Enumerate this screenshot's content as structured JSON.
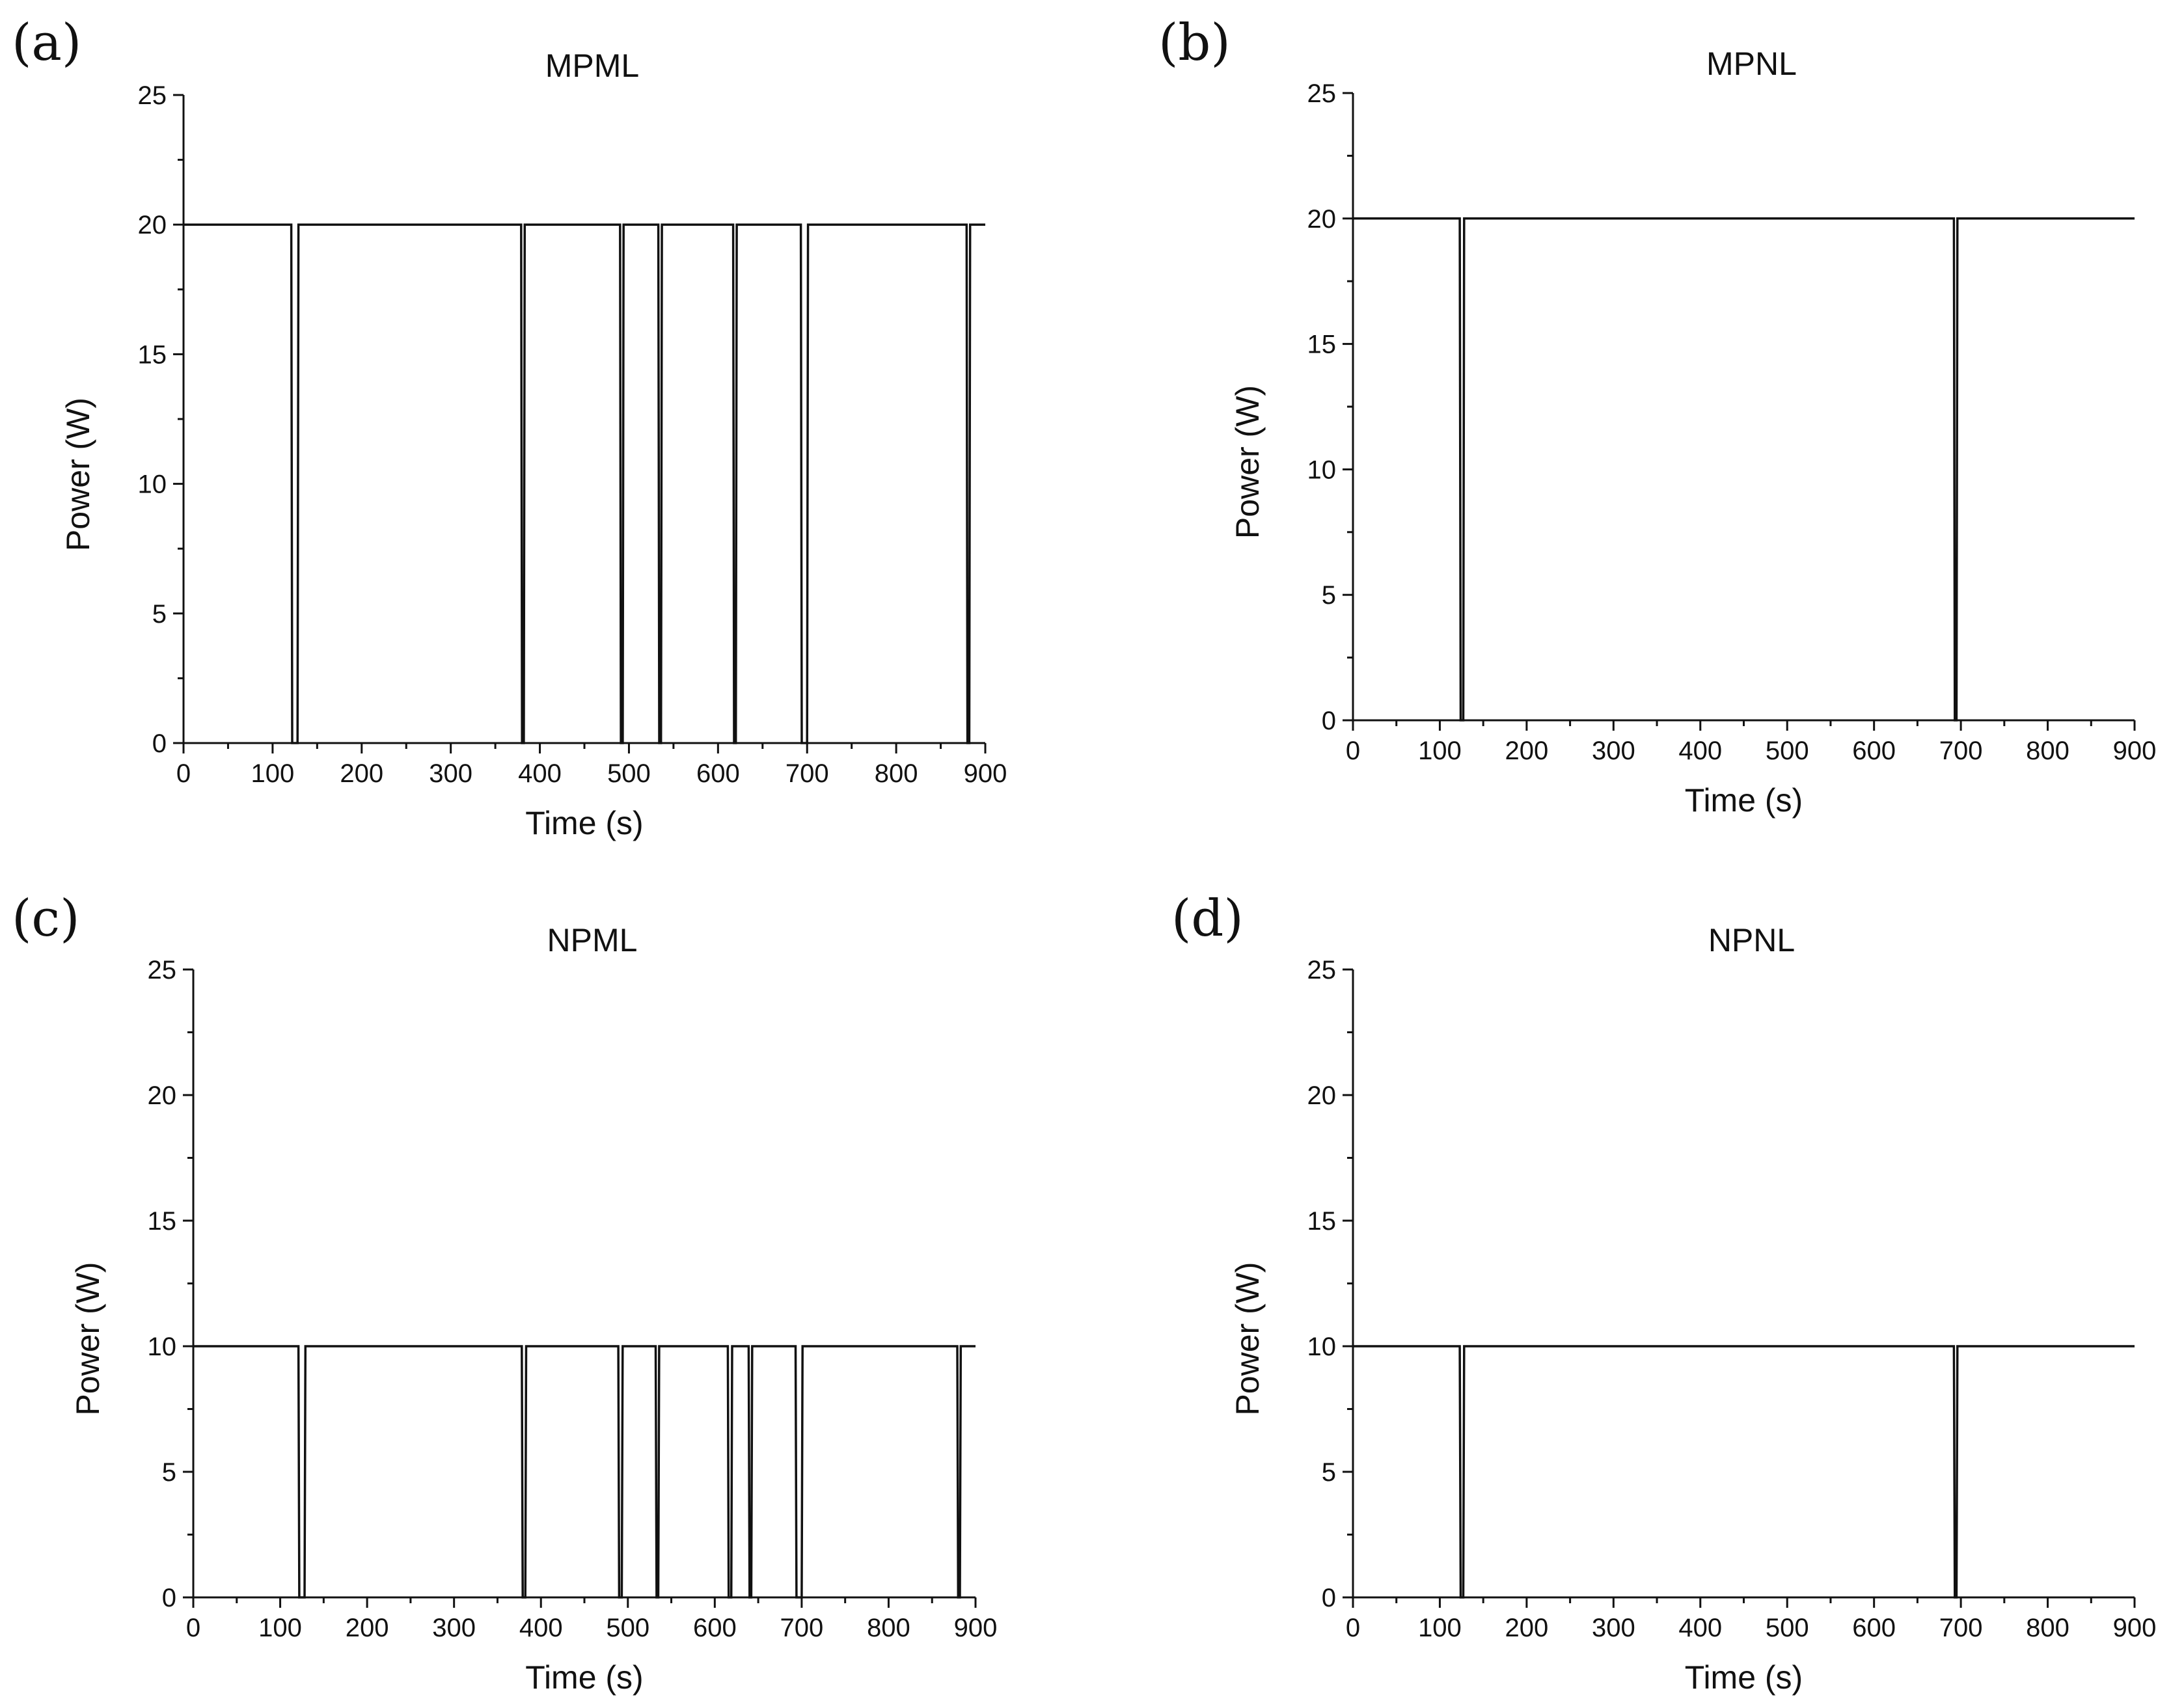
{
  "chart_data": [
    {
      "type": "line",
      "panel": "(a)",
      "title": "MPML",
      "xlabel": "Time (s)",
      "ylabel": "Power (W)",
      "xlim": [
        0,
        900
      ],
      "ylim": [
        0,
        25
      ],
      "xticks": [
        0,
        100,
        200,
        300,
        400,
        500,
        600,
        700,
        800,
        900
      ],
      "yticks": [
        0,
        5,
        10,
        15,
        20,
        25
      ],
      "grid": false,
      "series": [
        {
          "name": "Power",
          "x": [
            0,
            121,
            122,
            128,
            129,
            379,
            380,
            382,
            383,
            490,
            491,
            493,
            494,
            533,
            534,
            536,
            537,
            617,
            618,
            620,
            621,
            693,
            694,
            700,
            701,
            879,
            880,
            882,
            883,
            900
          ],
          "y": [
            20,
            20,
            0,
            0,
            20,
            20,
            0,
            0,
            20,
            20,
            0,
            0,
            20,
            20,
            0,
            0,
            20,
            20,
            0,
            0,
            20,
            20,
            0,
            0,
            20,
            20,
            0,
            0,
            20,
            20
          ]
        }
      ]
    },
    {
      "type": "line",
      "panel": "(b)",
      "title": "MPNL",
      "xlabel": "Time (s)",
      "ylabel": "Power (W)",
      "xlim": [
        0,
        900
      ],
      "ylim": [
        0,
        25
      ],
      "xticks": [
        0,
        100,
        200,
        300,
        400,
        500,
        600,
        700,
        800,
        900
      ],
      "yticks": [
        0,
        5,
        10,
        15,
        20,
        25
      ],
      "grid": false,
      "series": [
        {
          "name": "Power",
          "x": [
            0,
            123,
            124,
            127,
            128,
            692,
            693,
            695,
            696,
            900
          ],
          "y": [
            20,
            20,
            0,
            0,
            20,
            20,
            0,
            0,
            20,
            20
          ]
        }
      ]
    },
    {
      "type": "line",
      "panel": "(c)",
      "title": "NPML",
      "xlabel": "Time (s)",
      "ylabel": "Power (W)",
      "xlim": [
        0,
        900
      ],
      "ylim": [
        0,
        25
      ],
      "xticks": [
        0,
        100,
        200,
        300,
        400,
        500,
        600,
        700,
        800,
        900
      ],
      "yticks": [
        0,
        5,
        10,
        15,
        20,
        25
      ],
      "grid": false,
      "series": [
        {
          "name": "Power",
          "x": [
            0,
            121,
            122,
            128,
            129,
            378,
            379,
            382,
            383,
            489,
            490,
            493,
            494,
            532,
            533,
            535,
            536,
            615,
            616,
            619,
            620,
            639,
            640,
            642,
            643,
            693,
            694,
            700,
            701,
            879,
            880,
            882,
            883,
            900
          ],
          "y": [
            10,
            10,
            0,
            0,
            10,
            10,
            0,
            0,
            10,
            10,
            0,
            0,
            10,
            10,
            0,
            0,
            10,
            10,
            0,
            0,
            10,
            10,
            0,
            0,
            10,
            10,
            0,
            0,
            10,
            10,
            0,
            0,
            10,
            10
          ]
        }
      ]
    },
    {
      "type": "line",
      "panel": "(d)",
      "title": "NPNL",
      "xlabel": "Time (s)",
      "ylabel": "Power (W)",
      "xlim": [
        0,
        900
      ],
      "ylim": [
        0,
        25
      ],
      "xticks": [
        0,
        100,
        200,
        300,
        400,
        500,
        600,
        700,
        800,
        900
      ],
      "yticks": [
        0,
        5,
        10,
        15,
        20,
        25
      ],
      "grid": false,
      "series": [
        {
          "name": "Power",
          "x": [
            0,
            123,
            124,
            127,
            128,
            692,
            693,
            695,
            696,
            900
          ],
          "y": [
            10,
            10,
            0,
            0,
            10,
            10,
            0,
            0,
            10,
            10
          ]
        }
      ]
    }
  ]
}
